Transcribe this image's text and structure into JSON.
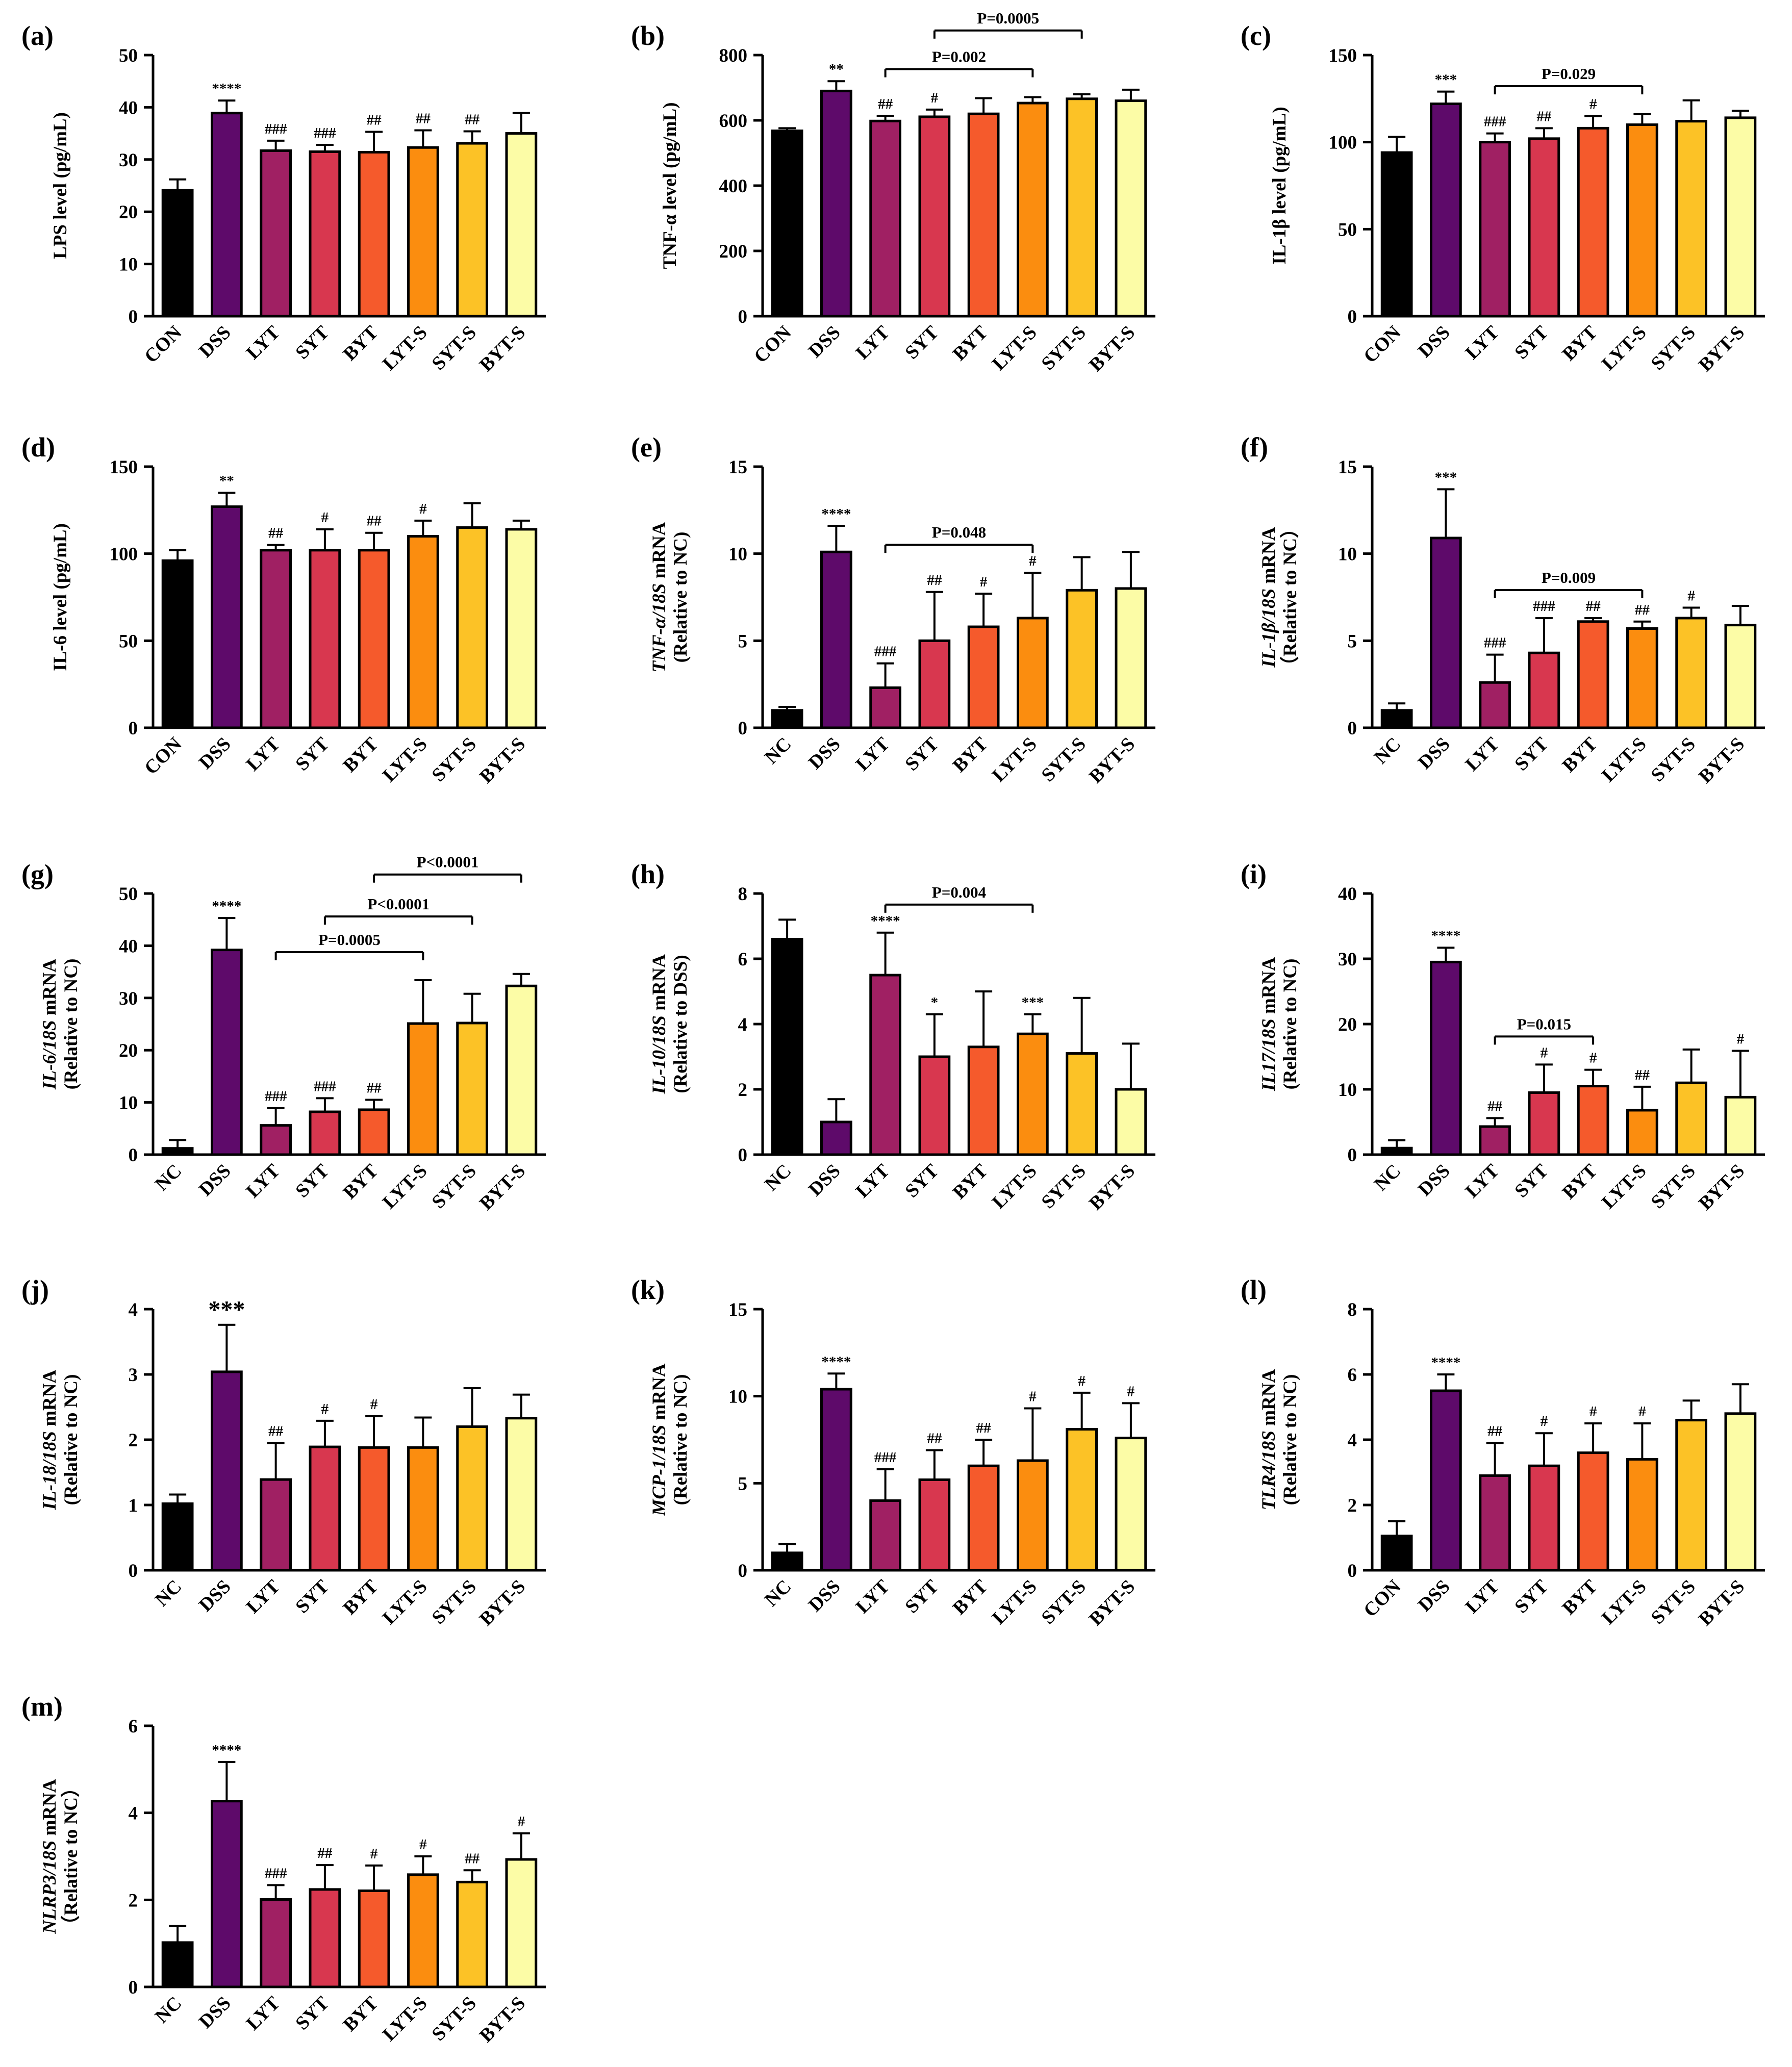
{
  "colors": [
    "#000000",
    "#5e0a6a",
    "#a02063",
    "#d8374f",
    "#f55a2c",
    "#fb8d0f",
    "#fcc226",
    "#fcfca6"
  ],
  "chart_data": [
    {
      "type": "bar",
      "panel": "(a)",
      "title": "",
      "xlabel": "",
      "ylabel": [
        {
          "t": "LPS level (pg/mL)",
          "i": false
        }
      ],
      "ylim": [
        0,
        50
      ],
      "yticks": [
        0,
        10,
        20,
        30,
        40,
        50
      ],
      "categories": [
        "CON",
        "DSS",
        "LYT",
        "SYT",
        "BYT",
        "LYT-S",
        "SYT-S",
        "BYT-S"
      ],
      "values": [
        24.1,
        38.9,
        31.7,
        31.5,
        31.4,
        32.3,
        33.1,
        35.0
      ],
      "errors": [
        2.1,
        2.4,
        1.9,
        1.3,
        3.9,
        3.3,
        2.3,
        3.9
      ],
      "labels": [
        "",
        "****",
        "###",
        "###",
        "##",
        "##",
        "##",
        ""
      ],
      "comparisons": []
    },
    {
      "type": "bar",
      "panel": "(b)",
      "title": "",
      "xlabel": "",
      "ylabel": [
        {
          "t": "TNF-α level (pg/mL)",
          "i": false
        }
      ],
      "ylim": [
        0,
        800
      ],
      "yticks": [
        0,
        200,
        400,
        600,
        800
      ],
      "categories": [
        "CON",
        "DSS",
        "LYT",
        "SYT",
        "BYT",
        "LYT-S",
        "SYT-S",
        "BYT-S"
      ],
      "values": [
        568,
        690,
        598,
        611,
        620,
        653,
        666,
        660
      ],
      "errors": [
        8,
        30,
        16,
        22,
        48,
        18,
        14,
        34
      ],
      "labels": [
        "",
        "**",
        "##",
        "#",
        "",
        "",
        "",
        ""
      ],
      "comparisons": [
        {
          "from": 2,
          "to": 5,
          "text": "P=0.002"
        },
        {
          "from": 3,
          "to": 6,
          "text": "P=0.0005"
        }
      ]
    },
    {
      "type": "bar",
      "panel": "(c)",
      "title": "",
      "xlabel": "",
      "ylabel": [
        {
          "t": "IL-1β level (pg/mL)",
          "i": false
        }
      ],
      "ylim": [
        0,
        150
      ],
      "yticks": [
        0,
        50,
        100,
        150
      ],
      "categories": [
        "CON",
        "DSS",
        "LYT",
        "SYT",
        "BYT",
        "LYT-S",
        "SYT-S",
        "BYT-S"
      ],
      "values": [
        94,
        122,
        100,
        102,
        108,
        110,
        112,
        114
      ],
      "errors": [
        9,
        7,
        5,
        6,
        7,
        6,
        12,
        4
      ],
      "labels": [
        "",
        "***",
        "###",
        "##",
        "#",
        "",
        "",
        ""
      ],
      "comparisons": [
        {
          "from": 2,
          "to": 5,
          "text": "P=0.029"
        }
      ]
    },
    {
      "type": "bar",
      "panel": "(d)",
      "title": "",
      "xlabel": "",
      "ylabel": [
        {
          "t": "IL-6 level (pg/mL)",
          "i": false
        }
      ],
      "ylim": [
        0,
        150
      ],
      "yticks": [
        0,
        50,
        100,
        150
      ],
      "categories": [
        "CON",
        "DSS",
        "LYT",
        "SYT",
        "BYT",
        "LYT-S",
        "SYT-S",
        "BYT-S"
      ],
      "values": [
        96,
        127,
        102,
        102,
        102,
        110,
        115,
        114
      ],
      "errors": [
        6,
        8,
        3,
        12,
        10,
        9,
        14,
        5
      ],
      "labels": [
        "",
        "**",
        "##",
        "#",
        "##",
        "#",
        "",
        ""
      ],
      "comparisons": []
    },
    {
      "type": "bar",
      "panel": "(e)",
      "title": "",
      "xlabel": "",
      "ylabel": [
        {
          "t": "TNF-α/18S",
          "i": true
        },
        {
          "t": " mRNA",
          "i": false
        },
        {
          "br": true
        },
        {
          "t": "(Relative to NC)",
          "i": false
        }
      ],
      "ylim": [
        0,
        15
      ],
      "yticks": [
        0,
        5,
        10,
        15
      ],
      "categories": [
        "NC",
        "DSS",
        "LYT",
        "SYT",
        "BYT",
        "LYT-S",
        "SYT-S",
        "BYT-S"
      ],
      "values": [
        1.0,
        10.1,
        2.3,
        5.0,
        5.8,
        6.3,
        7.9,
        8.0
      ],
      "errors": [
        0.2,
        1.5,
        1.4,
        2.8,
        1.9,
        2.6,
        1.9,
        2.1
      ],
      "labels": [
        "",
        "****",
        "###",
        "##",
        "#",
        "#",
        "",
        ""
      ],
      "comparisons": [
        {
          "from": 2,
          "to": 5,
          "text": "P=0.048"
        }
      ]
    },
    {
      "type": "bar",
      "panel": "(f)",
      "title": "",
      "xlabel": "",
      "ylabel": [
        {
          "t": "IL-1β/18S",
          "i": true
        },
        {
          "t": " mRNA",
          "i": false
        },
        {
          "br": true
        },
        {
          "t": "（Relative to NC）",
          "i": false
        }
      ],
      "ylim": [
        0,
        15
      ],
      "yticks": [
        0,
        5,
        10,
        15
      ],
      "categories": [
        "NC",
        "DSS",
        "LYT",
        "SYT",
        "BYT",
        "LYT-S",
        "SYT-S",
        "BYT-S"
      ],
      "values": [
        1.0,
        10.9,
        2.6,
        4.3,
        6.1,
        5.7,
        6.3,
        5.9
      ],
      "errors": [
        0.4,
        2.8,
        1.6,
        2.0,
        0.2,
        0.4,
        0.6,
        1.1
      ],
      "labels": [
        "",
        "***",
        "###",
        "###",
        "##",
        "##",
        "#",
        ""
      ],
      "comparisons": [
        {
          "from": 2,
          "to": 5,
          "text": "P=0.009"
        }
      ]
    },
    {
      "type": "bar",
      "panel": "(g)",
      "title": "",
      "xlabel": "",
      "ylabel": [
        {
          "t": "IL-6/18S",
          "i": true
        },
        {
          "t": " mRNA",
          "i": false
        },
        {
          "br": true
        },
        {
          "t": "(Relative to NC)",
          "i": false
        }
      ],
      "ylim": [
        0,
        50
      ],
      "yticks": [
        0,
        10,
        20,
        30,
        40,
        50
      ],
      "categories": [
        "NC",
        "DSS",
        "LYT",
        "SYT",
        "BYT",
        "LYT-S",
        "SYT-S",
        "BYT-S"
      ],
      "values": [
        1.2,
        39.2,
        5.6,
        8.2,
        8.6,
        25.1,
        25.2,
        32.3
      ],
      "errors": [
        1.6,
        6.1,
        3.3,
        2.6,
        1.9,
        8.3,
        5.6,
        2.3
      ],
      "labels": [
        "",
        "****",
        "###",
        "###",
        "##",
        "",
        "",
        ""
      ],
      "comparisons": [
        {
          "from": 2,
          "to": 5,
          "text": "P=0.0005"
        },
        {
          "from": 3,
          "to": 6,
          "text": "P<0.0001"
        },
        {
          "from": 4,
          "to": 7,
          "text": "P<0.0001"
        }
      ]
    },
    {
      "type": "bar",
      "panel": "(h)",
      "title": "",
      "xlabel": "",
      "ylabel": [
        {
          "t": "IL-10/18S",
          "i": true
        },
        {
          "t": " mRNA",
          "i": false
        },
        {
          "br": true
        },
        {
          "t": "(Relative to DSS)",
          "i": false
        }
      ],
      "ylim": [
        0,
        8
      ],
      "yticks": [
        0,
        2,
        4,
        6,
        8
      ],
      "categories": [
        "NC",
        "DSS",
        "LYT",
        "SYT",
        "BYT",
        "LYT-S",
        "SYT-S",
        "BYT-S"
      ],
      "values": [
        6.6,
        1.0,
        5.5,
        3.0,
        3.3,
        3.7,
        3.1,
        2.0
      ],
      "errors": [
        0.6,
        0.7,
        1.3,
        1.3,
        1.7,
        0.6,
        1.7,
        1.4
      ],
      "labels": [
        "",
        "",
        "****",
        "*",
        "",
        "***",
        "",
        ""
      ],
      "comparisons": [
        {
          "from": 2,
          "to": 5,
          "text": "P=0.004"
        }
      ]
    },
    {
      "type": "bar",
      "panel": "(i)",
      "title": "",
      "xlabel": "",
      "ylabel": [
        {
          "t": "IL17/18S",
          "i": true
        },
        {
          "t": " mRNA",
          "i": false
        },
        {
          "br": true
        },
        {
          "t": "(Relative to NC)",
          "i": false
        }
      ],
      "ylim": [
        0,
        40
      ],
      "yticks": [
        0,
        10,
        20,
        30,
        40
      ],
      "categories": [
        "NC",
        "DSS",
        "LYT",
        "SYT",
        "BYT",
        "LYT-S",
        "SYT-S",
        "BYT-S"
      ],
      "values": [
        1.0,
        29.5,
        4.3,
        9.5,
        10.5,
        6.8,
        11.0,
        8.8
      ],
      "errors": [
        1.2,
        2.2,
        1.3,
        4.3,
        2.5,
        3.6,
        5.1,
        7.1
      ],
      "labels": [
        "",
        "****",
        "##",
        "#",
        "#",
        "##",
        "",
        "#"
      ],
      "comparisons": [
        {
          "from": 2,
          "to": 4,
          "text": "P=0.015"
        }
      ]
    },
    {
      "type": "bar",
      "panel": "(j)",
      "title": "",
      "xlabel": "",
      "ylabel": [
        {
          "t": "IL-18/18S",
          "i": true
        },
        {
          "t": " mRNA",
          "i": false
        },
        {
          "br": true
        },
        {
          "t": "(Relative to NC)",
          "i": false
        }
      ],
      "ylim": [
        0,
        4
      ],
      "yticks": [
        0,
        1,
        2,
        3,
        4
      ],
      "categories": [
        "NC",
        "DSS",
        "LYT",
        "SYT",
        "BYT",
        "LYT-S",
        "SYT-S",
        "BYT-S"
      ],
      "values": [
        1.02,
        3.04,
        1.39,
        1.89,
        1.88,
        1.88,
        2.2,
        2.33
      ],
      "errors": [
        0.14,
        0.72,
        0.56,
        0.4,
        0.48,
        0.46,
        0.59,
        0.36
      ],
      "labels": [
        "",
        "***",
        "##",
        "#",
        "#",
        "",
        "",
        ""
      ],
      "comparisons": []
    },
    {
      "type": "bar",
      "panel": "(k)",
      "title": "",
      "xlabel": "",
      "ylabel": [
        {
          "t": "MCP-1/18S",
          "i": true
        },
        {
          "t": " mRNA",
          "i": false
        },
        {
          "br": true
        },
        {
          "t": "(Relative to NC)",
          "i": false
        }
      ],
      "ylim": [
        0,
        15
      ],
      "yticks": [
        0,
        5,
        10,
        15
      ],
      "categories": [
        "NC",
        "DSS",
        "LYT",
        "SYT",
        "BYT",
        "LYT-S",
        "SYT-S",
        "BYT-S"
      ],
      "values": [
        1.0,
        10.4,
        4.0,
        5.2,
        6.0,
        6.3,
        8.1,
        7.6
      ],
      "errors": [
        0.5,
        0.9,
        1.8,
        1.7,
        1.5,
        3.0,
        2.1,
        2.0
      ],
      "labels": [
        "",
        "****",
        "###",
        "##",
        "##",
        "#",
        "#",
        "#"
      ],
      "comparisons": []
    },
    {
      "type": "bar",
      "panel": "(l)",
      "title": "",
      "xlabel": "",
      "ylabel": [
        {
          "t": "TLR4/18S",
          "i": true
        },
        {
          "t": " mRNA",
          "i": false
        },
        {
          "br": true
        },
        {
          "t": "(Relative to NC)",
          "i": false
        }
      ],
      "ylim": [
        0,
        8
      ],
      "yticks": [
        0,
        2,
        4,
        6,
        8
      ],
      "categories": [
        "CON",
        "DSS",
        "LYT",
        "SYT",
        "BYT",
        "LYT-S",
        "SYT-S",
        "BYT-S"
      ],
      "values": [
        1.05,
        5.5,
        2.9,
        3.2,
        3.6,
        3.4,
        4.6,
        4.8
      ],
      "errors": [
        0.45,
        0.5,
        1.0,
        1.0,
        0.9,
        1.1,
        0.6,
        0.9
      ],
      "labels": [
        "",
        "****",
        "##",
        "#",
        "#",
        "#",
        "",
        ""
      ],
      "comparisons": []
    },
    {
      "type": "bar",
      "panel": "(m)",
      "title": "",
      "xlabel": "",
      "ylabel": [
        {
          "t": "NLRP3/18S",
          "i": true
        },
        {
          "t": " mRNA",
          "i": false
        },
        {
          "br": true
        },
        {
          "t": "（Relative to NC）",
          "i": false
        }
      ],
      "ylim": [
        0,
        6
      ],
      "yticks": [
        0,
        2,
        4,
        6
      ],
      "categories": [
        "NC",
        "DSS",
        "LYT",
        "SYT",
        "BYT",
        "LYT-S",
        "SYT-S",
        "BYT-S"
      ],
      "values": [
        1.02,
        4.27,
        2.01,
        2.24,
        2.21,
        2.58,
        2.41,
        2.93
      ],
      "errors": [
        0.38,
        0.9,
        0.33,
        0.56,
        0.58,
        0.42,
        0.27,
        0.6
      ],
      "labels": [
        "",
        "****",
        "###",
        "##",
        "#",
        "#",
        "##",
        "#"
      ],
      "comparisons": []
    }
  ]
}
